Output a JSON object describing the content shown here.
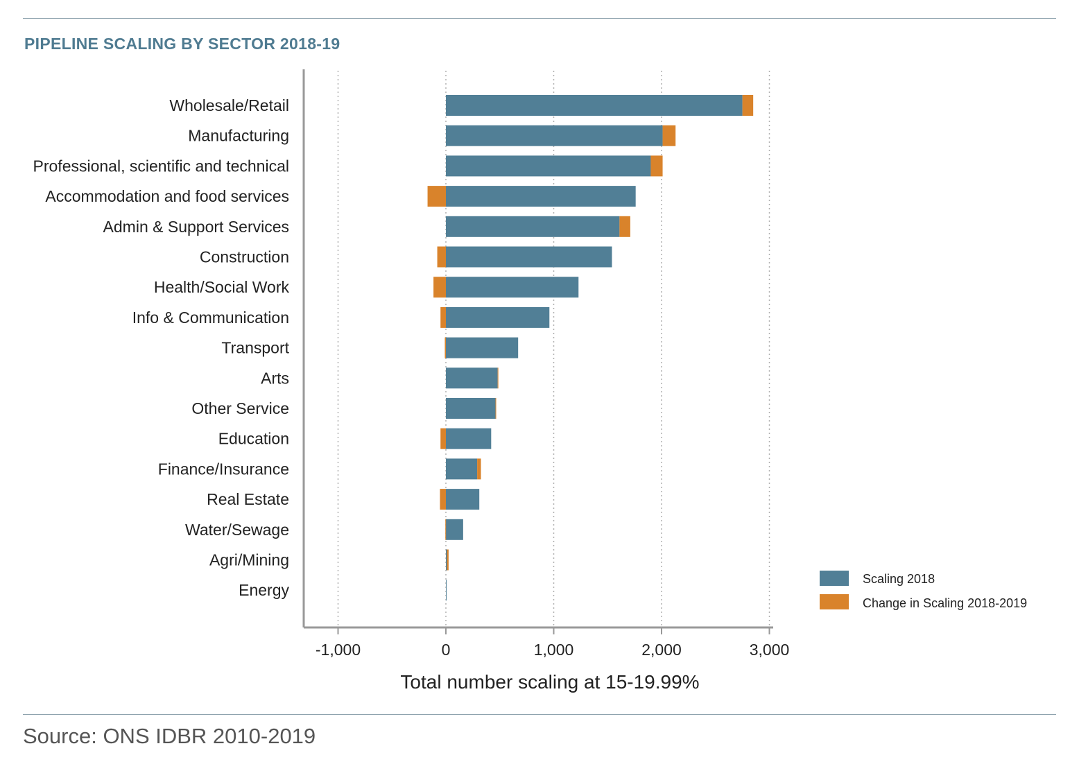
{
  "title": "PIPELINE SCALING BY SECTOR 2018-19",
  "source": "Source: ONS IDBR 2010-2019",
  "colors": {
    "scaling_2018": "#517f96",
    "change": "#d9832b",
    "accent_title": "#4f7b91",
    "rule": "#8fa3ae"
  },
  "chart_data": {
    "type": "bar",
    "orientation": "horizontal",
    "stacked": true,
    "title": "",
    "xlabel": "Total number scaling at 15-19.99%",
    "ylabel": "",
    "xlim": [
      -1300,
      3000
    ],
    "xticks": [
      -1000,
      0,
      1000,
      2000,
      3000
    ],
    "xtick_labels": [
      "-1,000",
      "0",
      "1,000",
      "2,000",
      "3,000"
    ],
    "grid": "vertical dotted",
    "legend_position": "right",
    "categories": [
      "Wholesale/Retail",
      "Manufacturing",
      "Professional, scientific and technical",
      "Accommodation and food services",
      "Admin & Support Services",
      "Construction",
      "Health/Social Work",
      "Info & Communication",
      "Transport",
      "Arts",
      "Other Service",
      "Education",
      "Finance/Insurance",
      "Real Estate",
      "Water/Sewage",
      "Agri/Mining",
      "Energy"
    ],
    "series": [
      {
        "name": "Scaling 2018",
        "color": "#517f96",
        "values": [
          2750,
          2010,
          1900,
          1760,
          1610,
          1540,
          1230,
          960,
          670,
          480,
          460,
          420,
          290,
          310,
          160,
          10,
          5
        ]
      },
      {
        "name": "Change in Scaling 2018-2019",
        "color": "#d9832b",
        "values": [
          100,
          120,
          110,
          -170,
          100,
          -80,
          -115,
          -50,
          -10,
          5,
          5,
          -50,
          35,
          -55,
          -5,
          15,
          0
        ]
      }
    ]
  }
}
